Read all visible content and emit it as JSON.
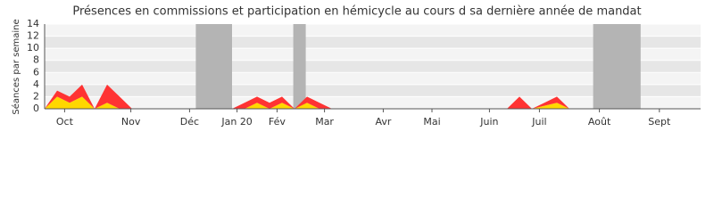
{
  "chart_data": {
    "type": "stacked-area",
    "title": "Présences en commissions et participation en hémicycle au cours d sa dernière année de mandat",
    "y_label": "Séances par semaine",
    "x": [
      0,
      1,
      2,
      3,
      4,
      5,
      6,
      7,
      8,
      9,
      10,
      11,
      12,
      13,
      14,
      15,
      16,
      17,
      18,
      19,
      20,
      21,
      22,
      23,
      24,
      25,
      26,
      27,
      28,
      29,
      30,
      31,
      32,
      33,
      34,
      35,
      36,
      37,
      38,
      39,
      40,
      41,
      42,
      43,
      44,
      45,
      46,
      47,
      48,
      49,
      50,
      51,
      52
    ],
    "series": [
      {
        "color": "#ffd700",
        "values": [
          0,
          2,
          1,
          2,
          0,
          1,
          0,
          0,
          0,
          0,
          0,
          0,
          0,
          0,
          0,
          0,
          0,
          1,
          0,
          1,
          0,
          1,
          0,
          0,
          0,
          0,
          0,
          0,
          0,
          0,
          0,
          0,
          0,
          0,
          0,
          0,
          0,
          0,
          0,
          0,
          0.5,
          1,
          0,
          0,
          0,
          0,
          0,
          0,
          0,
          0,
          0,
          0,
          0
        ]
      },
      {
        "color": "#ff3333",
        "values": [
          0,
          1,
          1,
          2,
          0,
          3,
          2,
          0,
          0,
          0,
          0,
          0,
          0,
          0,
          0,
          0,
          1,
          1,
          1,
          1,
          0,
          1,
          1,
          0,
          0,
          0,
          0,
          0,
          0,
          0,
          0,
          0,
          0,
          0,
          0,
          0,
          0,
          0,
          2,
          0,
          0.5,
          1,
          0,
          0,
          0,
          0,
          0,
          0,
          0,
          0,
          0,
          0,
          0
        ]
      }
    ],
    "xlim": [
      0,
      52.5
    ],
    "xticks": [
      {
        "value": 1.6,
        "label": "Oct"
      },
      {
        "value": 6.9,
        "label": "Nov"
      },
      {
        "value": 11.6,
        "label": "Déc"
      },
      {
        "value": 15.4,
        "label": "Jan 20"
      },
      {
        "value": 18.6,
        "label": "Fév"
      },
      {
        "value": 22.4,
        "label": "Mar"
      },
      {
        "value": 27.1,
        "label": "Avr"
      },
      {
        "value": 31,
        "label": "Mai"
      },
      {
        "value": 35.6,
        "label": "Juin"
      },
      {
        "value": 39.6,
        "label": "Juil"
      },
      {
        "value": 44.4,
        "label": "Août"
      },
      {
        "value": 49.2,
        "label": "Sept"
      }
    ],
    "ylim": [
      0,
      14
    ],
    "yticks": [
      0,
      2,
      4,
      6,
      8,
      10,
      12,
      14
    ],
    "grid": true,
    "shaded_ranges": [
      [
        12.1,
        15
      ],
      [
        19.9,
        20.9
      ],
      [
        43.9,
        47.7
      ]
    ],
    "shade_color": "#b4b4b4"
  }
}
